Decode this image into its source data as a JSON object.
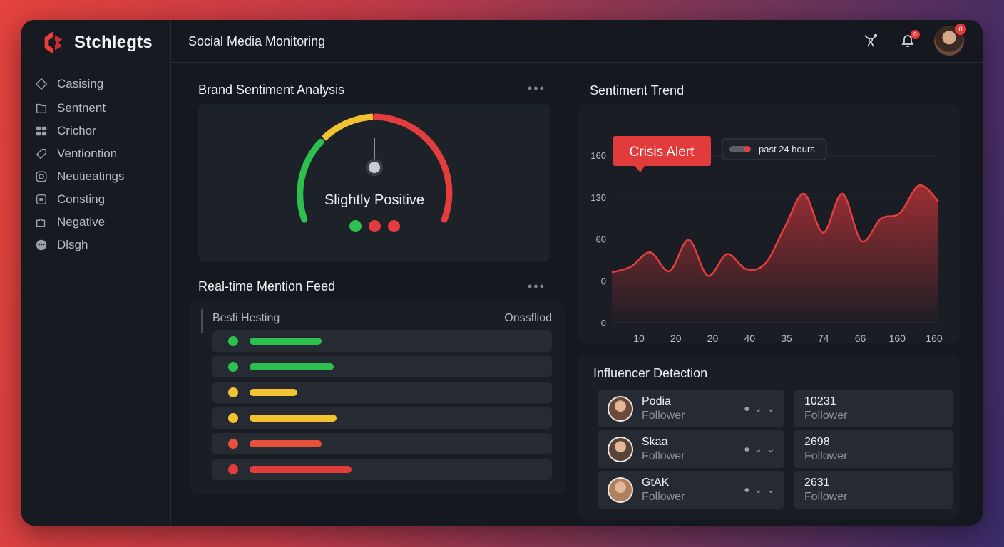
{
  "brand": {
    "name": "Stchlegts",
    "color": "#e8403c"
  },
  "header": {
    "title": "Social Media Monitoring",
    "notification_badge": "0",
    "avatar_badge": "0"
  },
  "sidebar": {
    "items": [
      {
        "label": "Casising",
        "icon": "diamond-icon"
      },
      {
        "label": "Sentnent",
        "icon": "folder-icon"
      },
      {
        "label": "Crichor",
        "icon": "grid-icon"
      },
      {
        "label": "Ventiontion",
        "icon": "tag-icon"
      },
      {
        "label": "Neutieatings",
        "icon": "camera-icon"
      },
      {
        "label": "Consting",
        "icon": "square-icon"
      },
      {
        "label": "Negative",
        "icon": "puzzle-icon"
      },
      {
        "label": "Dlsgh",
        "icon": "dots-circle-icon"
      }
    ]
  },
  "sentiment": {
    "title": "Brand Sentiment Analysis",
    "label": "Slightly Positive",
    "indicator_colors": [
      "#2ec04f",
      "#e23c3c",
      "#e23c3c"
    ]
  },
  "feed": {
    "title": "Real-time Mention Feed",
    "col_left": "Besfi Hesting",
    "col_right": "Onssfliod",
    "rows": [
      {
        "color": "#2ec04f",
        "level": 0.24
      },
      {
        "color": "#2ec04f",
        "level": 0.28
      },
      {
        "color": "#f2c230",
        "level": 0.16
      },
      {
        "color": "#f2c230",
        "level": 0.29
      },
      {
        "color": "#e5513a",
        "level": 0.24
      },
      {
        "color": "#e23c3c",
        "level": 0.34
      }
    ]
  },
  "trend": {
    "title": "Sentiment Trend",
    "alert": "Crisis Alert",
    "legend": "past 24 hours"
  },
  "chart_data": {
    "type": "area",
    "title": "Sentiment Trend",
    "ytick_labels": [
      "160",
      "130",
      "60",
      "0",
      "0"
    ],
    "xtick_labels": [
      "10",
      "20",
      "20",
      "40",
      "35",
      "74",
      "66",
      "160",
      "160"
    ],
    "x": [
      0,
      0.5,
      1,
      1.5,
      2,
      2.5,
      3,
      3.5,
      4,
      4.5,
      5,
      5.5,
      6,
      6.5,
      7,
      7.5,
      8,
      8.5
    ],
    "values": [
      0.2,
      0.34,
      0.68,
      0.23,
      0.98,
      0.12,
      0.64,
      0.28,
      0.42,
      1.28,
      2.08,
      1.15,
      2.08,
      0.95,
      1.48,
      1.62,
      2.28,
      1.9
    ],
    "series": [
      {
        "name": "past 24 hours",
        "color": "#e53e3e"
      }
    ],
    "grid": true,
    "legend_position": "top"
  },
  "influencers": {
    "title": "Influencer Detection",
    "rows": [
      {
        "name": "Podia",
        "sub": "Follower",
        "count": "10231",
        "count_sub": "Follower",
        "avatar": "#6b4a3a"
      },
      {
        "name": "Skaa",
        "sub": "Follower",
        "count": "2698",
        "count_sub": "Follower",
        "avatar": "#5a4438"
      },
      {
        "name": "GtAK",
        "sub": "Follower",
        "count": "2631",
        "count_sub": "Follower",
        "avatar": "#b0805c"
      }
    ]
  }
}
